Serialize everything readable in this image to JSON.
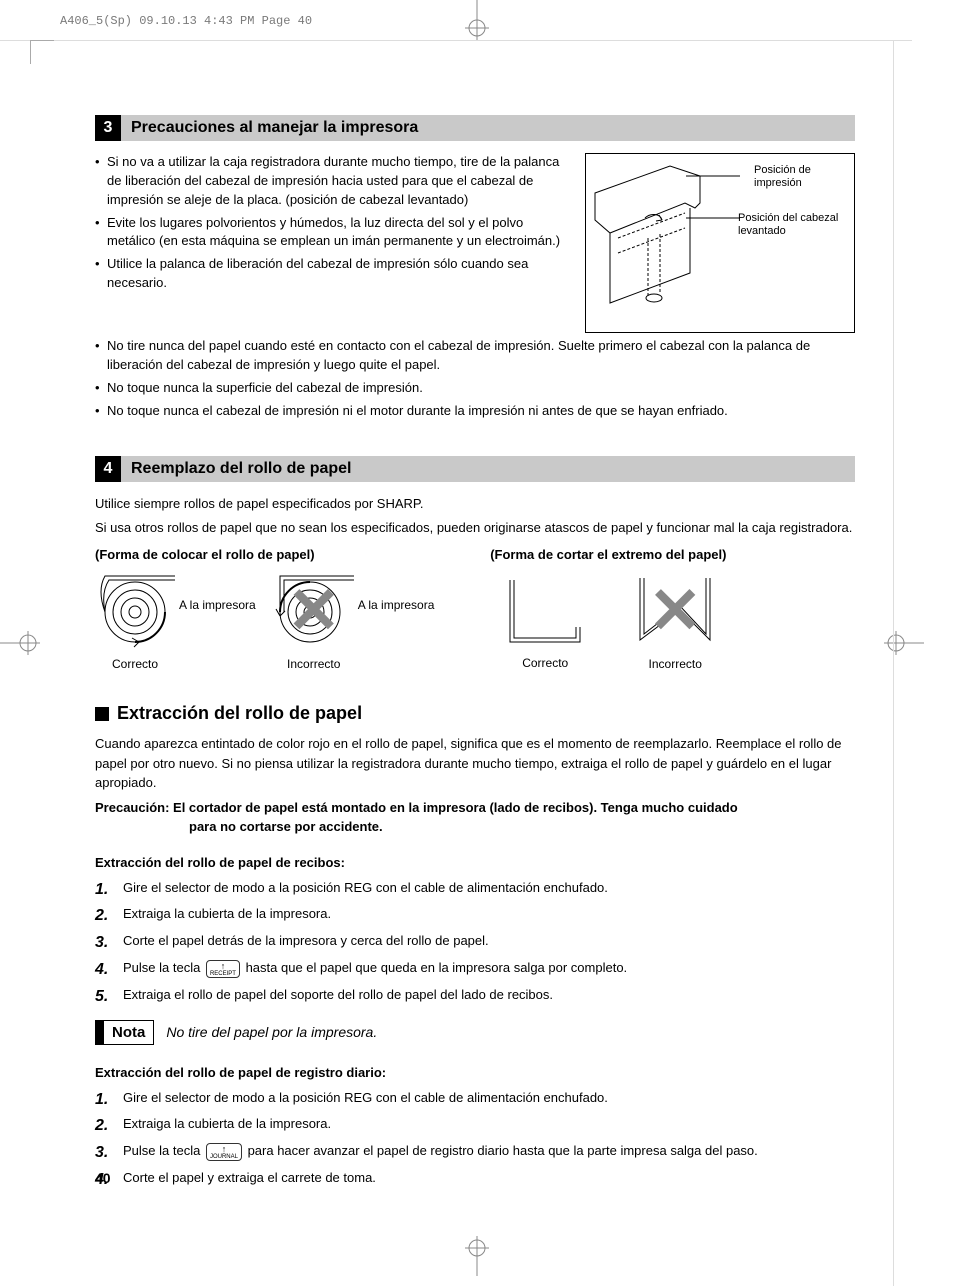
{
  "header_slug": "A406_5(Sp)  09.10.13 4:43 PM  Page 40",
  "page_number": "40",
  "section3": {
    "num": "3",
    "title": "Precauciones al manejar la impresora",
    "bullets_col1": [
      "Si no va a utilizar la caja registradora durante mucho tiempo, tire de la palanca de liberación del cabezal de impresión hacia usted para que el cabezal de impresión se aleje de la placa. (posición de cabezal levantado)",
      "Evite los lugares polvorientos y húmedos, la luz directa del sol y el polvo metálico (en esta máquina se emplean un imán permanente y un electroimán.)",
      "Utilice la palanca de liberación del cabezal de impresión sólo cuando sea necesario."
    ],
    "bullets_full": [
      "No tire nunca del papel cuando esté en contacto con el cabezal de impresión. Suelte primero el cabezal con la palanca de liberación del cabezal de impresión y luego quite el papel.",
      "No toque nunca la superficie del cabezal de impresión.",
      "No toque nunca el cabezal de impresión ni el motor durante la impresión ni antes de que se hayan enfriado."
    ],
    "fig_label_a": "Posición de impresión",
    "fig_label_b": "Posición del cabezal levantado"
  },
  "section4": {
    "num": "4",
    "title": "Reemplazo del rollo de papel",
    "intro1": "Utilice siempre rollos de papel especificados por SHARP.",
    "intro2": "Si usa otros rollos de papel que no sean los especificados, pueden originarse atascos de papel y funcionar mal la caja registradora.",
    "left_diag_title": "(Forma de colocar el rollo de papel)",
    "right_diag_title": "(Forma de cortar el extremo del papel)",
    "to_printer": "A la impresora",
    "correct": "Correcto",
    "incorrect": "Incorrecto"
  },
  "extraction": {
    "heading": "Extracción del rollo de papel",
    "intro": "Cuando aparezca entintado de color rojo en el rollo de papel, significa que es el momento de reemplazarlo. Reemplace el rollo de papel por otro nuevo. Si no piensa utilizar la registradora durante mucho tiempo, extraiga el rollo de papel y guárdelo en el lugar apropiado.",
    "caution_lead": "Precaución: El cortador de papel está montado en la impresora (lado de recibos). Tenga mucho cuidado",
    "caution_indent": "para no cortarse por accidente.",
    "receipt_heading": "Extracción del rollo de papel de recibos:",
    "receipt_steps": [
      "Gire el selector de modo a la posición REG con el cable de alimentación enchufado.",
      "Extraiga la cubierta de la impresora.",
      "Corte el papel detrás de la impresora y cerca del rollo de papel.",
      "Pulse la tecla {RECEIPT} hasta que el papel que queda en la impresora salga por completo.",
      "Extraiga el rollo de papel del soporte del rollo de papel del lado de recibos."
    ],
    "nota_label": "Nota",
    "nota_text": "No tire del papel por la impresora.",
    "journal_heading": "Extracción del rollo de papel de registro diario:",
    "journal_steps": [
      "Gire el selector de modo a la posición REG con el cable de alimentación enchufado.",
      "Extraiga la cubierta de la impresora.",
      "Pulse la tecla {JOURNAL} para hacer avanzar el papel de registro diario hasta que la parte impresa salga del paso.",
      "Corte el papel y extraiga el carrete de toma."
    ],
    "key_receipt": "RECEIPT",
    "key_journal": "JOURNAL"
  }
}
